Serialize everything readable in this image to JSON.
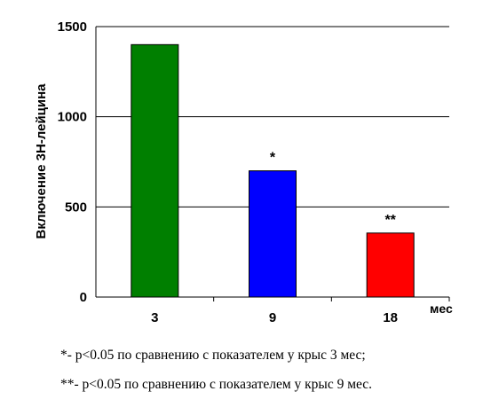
{
  "chart_data": {
    "type": "bar",
    "categories": [
      "3",
      "9",
      "18"
    ],
    "values": [
      1400,
      700,
      355
    ],
    "colors": [
      "#007f00",
      "#0000ff",
      "#ff0000"
    ],
    "annotations": [
      "",
      "*",
      "**"
    ],
    "ylabel": "Включение 3Н-лейцина",
    "xunit": "мес",
    "ylim": [
      0,
      1500
    ],
    "yticks": [
      0,
      500,
      1000,
      1500
    ],
    "grid": true
  },
  "footnotes": [
    "*- p<0.05 по сравнению с показателем у крыс 3 мес;",
    "**- p<0.05 по сравнению с показателем у крыс 9 мес."
  ]
}
